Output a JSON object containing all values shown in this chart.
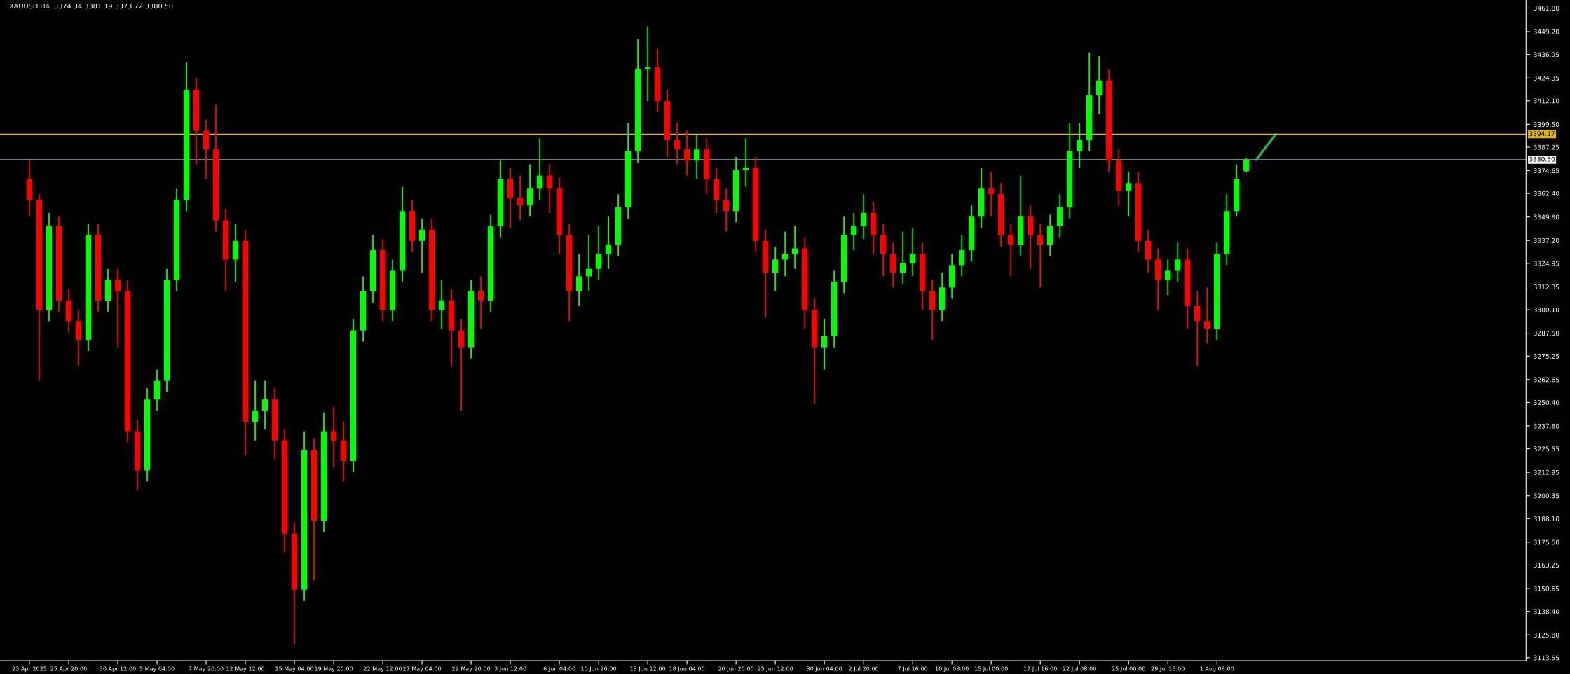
{
  "chart_data": {
    "type": "candlestick",
    "title": "XAUUSD,H4  3374.34 3381.19 3373.72 3380.50",
    "categories": [
      "23 Apr 2025",
      null,
      null,
      null,
      "25 Apr 20:00",
      null,
      null,
      null,
      null,
      "30 Apr 12:00",
      null,
      null,
      null,
      "5 May 04:00",
      null,
      null,
      null,
      null,
      "7 May 20:00",
      null,
      null,
      null,
      "12 May 12:00",
      null,
      null,
      null,
      null,
      "15 May 04:00",
      null,
      null,
      null,
      "19 May 20:00",
      null,
      null,
      null,
      null,
      "22 May 12:00",
      null,
      null,
      null,
      "27 May 04:00",
      null,
      null,
      null,
      null,
      "29 May 20:00",
      null,
      null,
      null,
      "3 Jun 12:00",
      null,
      null,
      null,
      null,
      "6 Jun 04:00",
      null,
      null,
      null,
      "10 Jun 20:00",
      null,
      null,
      null,
      null,
      "13 Jun 12:00",
      null,
      null,
      null,
      "18 Jun 04:00",
      null,
      null,
      null,
      null,
      "20 Jun 20:00",
      null,
      null,
      null,
      "25 Jun 12:00",
      null,
      null,
      null,
      null,
      "30 Jun 04:00",
      null,
      null,
      null,
      "2 Jul 20:00",
      null,
      null,
      null,
      null,
      "7 Jul 16:00",
      null,
      null,
      null,
      "10 Jul 08:00",
      null,
      null,
      null,
      "15 Jul 00:00",
      null,
      null,
      null,
      null,
      "17 Jul 16:00",
      null,
      null,
      null,
      "22 Jul 08:00",
      null,
      null,
      null,
      null,
      "25 Jul 00:00",
      null,
      null,
      null,
      "29 Jul 16:00",
      null,
      null,
      null,
      null,
      "1 Aug 08:00",
      null,
      null,
      null,
      null,
      null,
      null,
      null,
      null,
      null,
      null,
      null,
      null,
      null,
      null,
      null,
      null,
      null,
      null,
      null,
      null,
      null,
      null,
      null,
      null,
      null,
      null,
      null,
      null,
      null,
      null,
      null
    ],
    "ohlc": [
      [
        3370,
        3380,
        3350,
        3359
      ],
      [
        3359,
        3362,
        3262,
        3300
      ],
      [
        3300,
        3352,
        3294,
        3345
      ],
      [
        3345,
        3350,
        3299,
        3305
      ],
      [
        3305,
        3311,
        3288,
        3294
      ],
      [
        3294,
        3300,
        3270,
        3284
      ],
      [
        3284,
        3346,
        3278,
        3340
      ],
      [
        3340,
        3346,
        3299,
        3305
      ],
      [
        3305,
        3322,
        3299,
        3316
      ],
      [
        3316,
        3322,
        3280,
        3310
      ],
      [
        3310,
        3316,
        3229,
        3235
      ],
      [
        3235,
        3241,
        3203,
        3214
      ],
      [
        3214,
        3258,
        3208,
        3252
      ],
      [
        3252,
        3268,
        3246,
        3262
      ],
      [
        3262,
        3322,
        3256,
        3316
      ],
      [
        3316,
        3365,
        3310,
        3359
      ],
      [
        3359,
        3433,
        3353,
        3418
      ],
      [
        3418,
        3424,
        3378,
        3396
      ],
      [
        3396,
        3402,
        3370,
        3386
      ],
      [
        3386,
        3410,
        3342,
        3348
      ],
      [
        3348,
        3354,
        3310,
        3327
      ],
      [
        3327,
        3346,
        3315,
        3337
      ],
      [
        3337,
        3343,
        3222,
        3240
      ],
      [
        3240,
        3262,
        3230,
        3246
      ],
      [
        3246,
        3262,
        3236,
        3252
      ],
      [
        3252,
        3258,
        3220,
        3230
      ],
      [
        3230,
        3236,
        3170,
        3180
      ],
      [
        3180,
        3186,
        3121,
        3150
      ],
      [
        3150,
        3235,
        3144,
        3225
      ],
      [
        3225,
        3231,
        3155,
        3187
      ],
      [
        3187,
        3245,
        3181,
        3235
      ],
      [
        3235,
        3248,
        3216,
        3230
      ],
      [
        3230,
        3240,
        3208,
        3219
      ],
      [
        3219,
        3295,
        3213,
        3289
      ],
      [
        3289,
        3318,
        3283,
        3310
      ],
      [
        3310,
        3340,
        3304,
        3332
      ],
      [
        3332,
        3338,
        3294,
        3300
      ],
      [
        3300,
        3327,
        3294,
        3321
      ],
      [
        3321,
        3366,
        3315,
        3353
      ],
      [
        3353,
        3359,
        3331,
        3337
      ],
      [
        3337,
        3349,
        3320,
        3343
      ],
      [
        3343,
        3349,
        3294,
        3300
      ],
      [
        3300,
        3316,
        3290,
        3305
      ],
      [
        3305,
        3311,
        3270,
        3289
      ],
      [
        3289,
        3295,
        3246,
        3280
      ],
      [
        3280,
        3316,
        3274,
        3310
      ],
      [
        3310,
        3318,
        3290,
        3305
      ],
      [
        3305,
        3351,
        3299,
        3345
      ],
      [
        3345,
        3380,
        3339,
        3370
      ],
      [
        3370,
        3376,
        3344,
        3360
      ],
      [
        3360,
        3372,
        3348,
        3356
      ],
      [
        3356,
        3378,
        3350,
        3365
      ],
      [
        3365,
        3392,
        3359,
        3372
      ],
      [
        3372,
        3378,
        3352,
        3365
      ],
      [
        3365,
        3371,
        3330,
        3340
      ],
      [
        3340,
        3346,
        3294,
        3310
      ],
      [
        3310,
        3330,
        3302,
        3318
      ],
      [
        3318,
        3340,
        3310,
        3322
      ],
      [
        3322,
        3345,
        3316,
        3330
      ],
      [
        3330,
        3350,
        3322,
        3335
      ],
      [
        3335,
        3362,
        3329,
        3355
      ],
      [
        3355,
        3400,
        3349,
        3385
      ],
      [
        3385,
        3445,
        3379,
        3429
      ],
      [
        3429,
        3452,
        3412,
        3430
      ],
      [
        3430,
        3440,
        3406,
        3412
      ],
      [
        3412,
        3418,
        3382,
        3391
      ],
      [
        3391,
        3400,
        3378,
        3386
      ],
      [
        3386,
        3396,
        3372,
        3380
      ],
      [
        3380,
        3394,
        3370,
        3386
      ],
      [
        3386,
        3392,
        3362,
        3370
      ],
      [
        3370,
        3376,
        3352,
        3359
      ],
      [
        3359,
        3365,
        3342,
        3353
      ],
      [
        3353,
        3382,
        3347,
        3375
      ],
      [
        3375,
        3392,
        3366,
        3376
      ],
      [
        3376,
        3382,
        3331,
        3337
      ],
      [
        3337,
        3343,
        3296,
        3320
      ],
      [
        3320,
        3334,
        3310,
        3327
      ],
      [
        3327,
        3342,
        3318,
        3330
      ],
      [
        3330,
        3345,
        3322,
        3333
      ],
      [
        3333,
        3339,
        3290,
        3300
      ],
      [
        3300,
        3306,
        3250,
        3280
      ],
      [
        3280,
        3295,
        3268,
        3286
      ],
      [
        3286,
        3321,
        3280,
        3315
      ],
      [
        3315,
        3350,
        3309,
        3340
      ],
      [
        3340,
        3352,
        3332,
        3345
      ],
      [
        3345,
        3362,
        3338,
        3352
      ],
      [
        3352,
        3358,
        3330,
        3340
      ],
      [
        3340,
        3346,
        3318,
        3330
      ],
      [
        3330,
        3336,
        3312,
        3320
      ],
      [
        3320,
        3342,
        3314,
        3325
      ],
      [
        3325,
        3344,
        3318,
        3330
      ],
      [
        3330,
        3336,
        3300,
        3310
      ],
      [
        3310,
        3316,
        3284,
        3300
      ],
      [
        3300,
        3320,
        3294,
        3312
      ],
      [
        3312,
        3330,
        3306,
        3324
      ],
      [
        3324,
        3340,
        3318,
        3332
      ],
      [
        3332,
        3356,
        3326,
        3350
      ],
      [
        3350,
        3376,
        3344,
        3365
      ],
      [
        3365,
        3374,
        3350,
        3362
      ],
      [
        3362,
        3368,
        3334,
        3340
      ],
      [
        3340,
        3346,
        3318,
        3335
      ],
      [
        3335,
        3372,
        3329,
        3350
      ],
      [
        3350,
        3356,
        3322,
        3340
      ],
      [
        3340,
        3346,
        3312,
        3335
      ],
      [
        3335,
        3351,
        3329,
        3345
      ],
      [
        3345,
        3362,
        3339,
        3355
      ],
      [
        3355,
        3400,
        3349,
        3385
      ],
      [
        3385,
        3400,
        3376,
        3391
      ],
      [
        3391,
        3438,
        3385,
        3415
      ],
      [
        3415,
        3436,
        3405,
        3423
      ],
      [
        3423,
        3429,
        3374,
        3380
      ],
      [
        3380,
        3386,
        3356,
        3364
      ],
      [
        3364,
        3374,
        3350,
        3368
      ],
      [
        3368,
        3374,
        3331,
        3337
      ],
      [
        3337,
        3343,
        3320,
        3327
      ],
      [
        3327,
        3333,
        3300,
        3316
      ],
      [
        3316,
        3327,
        3308,
        3321
      ],
      [
        3321,
        3336,
        3315,
        3327
      ],
      [
        3327,
        3333,
        3290,
        3302
      ],
      [
        3302,
        3310,
        3270,
        3294
      ],
      [
        3294,
        3312,
        3282,
        3290
      ],
      [
        3290,
        3336,
        3284,
        3330
      ],
      [
        3330,
        3362,
        3324,
        3353
      ],
      [
        3353,
        3378,
        3350,
        3370
      ],
      [
        3374.34,
        3381.19,
        3373.72,
        3380.5
      ],
      null,
      null,
      null,
      null,
      null,
      null,
      null,
      null,
      null,
      null,
      null,
      null,
      null,
      null,
      null,
      null,
      null,
      null,
      null,
      null,
      null,
      null,
      null,
      null,
      null,
      null,
      null,
      null
    ],
    "colors": [
      "#ff0000",
      "#ff0000",
      "#00ff00",
      "#ff0000",
      "#ff0000",
      "#ff0000",
      "#00ff00",
      "#ff0000",
      "#00ff00",
      "#ff0000",
      "#ff0000",
      "#ff0000",
      "#00ff00",
      "#00ff00",
      "#00ff00",
      "#00ff00",
      "#00ff00",
      "#ff0000",
      "#ff0000",
      "#ff0000",
      "#ff0000",
      "#00ff00",
      "#ff0000",
      "#00ff00",
      "#00ff00",
      "#ff0000",
      "#ff0000",
      "#ff0000",
      "#00ff00",
      "#ff0000",
      "#00ff00",
      "#ff0000",
      "#ff0000",
      "#00ff00",
      "#00ff00",
      "#00ff00",
      "#ff0000",
      "#00ff00",
      "#00ff00",
      "#ff0000",
      "#00ff00",
      "#ff0000",
      "#00ff00",
      "#ff0000",
      "#ff0000",
      "#00ff00",
      "#ff0000",
      "#00ff00",
      "#00ff00",
      "#ff0000",
      "#ff0000",
      "#00ff00",
      "#00ff00",
      "#ff0000",
      "#ff0000",
      "#ff0000",
      "#00ff00",
      "#00ff00",
      "#00ff00",
      "#00ff00",
      "#00ff00",
      "#00ff00",
      "#00ff00",
      "#00ff00",
      "#ff0000",
      "#ff0000",
      "#ff0000",
      "#ff0000",
      "#00ff00",
      "#ff0000",
      "#ff0000",
      "#ff0000",
      "#00ff00",
      "#00ff00",
      "#ff0000",
      "#ff0000",
      "#00ff00",
      "#00ff00",
      "#00ff00",
      "#ff0000",
      "#ff0000",
      "#00ff00",
      "#00ff00",
      "#00ff00",
      "#00ff00",
      "#00ff00",
      "#ff0000",
      "#ff0000",
      "#ff0000",
      "#00ff00",
      "#00ff00",
      "#ff0000",
      "#ff0000",
      "#00ff00",
      "#00ff00",
      "#00ff00",
      "#00ff00",
      "#00ff00",
      "#ff0000",
      "#ff0000",
      "#ff0000",
      "#00ff00",
      "#ff0000",
      "#ff0000",
      "#00ff00",
      "#00ff00",
      "#00ff00",
      "#00ff00",
      "#00ff00",
      "#00ff00",
      "#ff0000",
      "#ff0000",
      "#00ff00",
      "#ff0000",
      "#ff0000",
      "#ff0000",
      "#00ff00",
      "#00ff00",
      "#ff0000",
      "#ff0000",
      "#ff0000",
      "#00ff00",
      "#00ff00",
      "#00ff00",
      "#00ff00",
      null,
      null,
      null,
      null,
      null,
      null,
      null,
      null,
      null,
      null,
      null,
      null,
      null,
      null,
      null,
      null,
      null,
      null,
      null,
      null,
      null,
      null,
      null,
      null,
      null,
      null,
      null,
      null
    ],
    "series": [
      {
        "type": "line",
        "color": "#22b14c",
        "values": [
          null,
          null,
          null,
          null,
          null,
          null,
          null,
          null,
          null,
          null,
          null,
          null,
          null,
          null,
          null,
          null,
          null,
          null,
          null,
          null,
          null,
          null,
          null,
          null,
          null,
          null,
          null,
          null,
          null,
          null,
          null,
          null,
          null,
          null,
          null,
          null,
          null,
          null,
          null,
          null,
          null,
          null,
          null,
          null,
          null,
          null,
          null,
          null,
          null,
          null,
          null,
          null,
          null,
          null,
          null,
          null,
          null,
          null,
          null,
          null,
          null,
          null,
          null,
          null,
          null,
          null,
          null,
          null,
          null,
          null,
          null,
          null,
          null,
          null,
          null,
          null,
          null,
          null,
          null,
          null,
          null,
          null,
          null,
          null,
          null,
          null,
          null,
          null,
          null,
          null,
          null,
          null,
          null,
          null,
          null,
          null,
          null,
          null,
          null,
          null,
          null,
          null,
          null,
          null,
          null,
          null,
          null,
          null,
          null,
          null,
          null,
          null,
          null,
          null,
          null,
          null,
          null,
          null,
          null,
          null,
          null,
          null,
          null,
          null,
          null,
          3380.5,
          null,
          3394.17,
          null,
          null,
          null,
          null,
          null,
          null,
          null,
          null,
          null,
          null,
          null,
          null,
          null,
          null,
          null,
          null,
          null,
          null,
          null,
          null,
          null,
          null,
          null,
          null,
          null
        ]
      }
    ],
    "ylim": [
      3112,
      3466.1
    ],
    "yticks": [
      3113.55,
      {
        "value": 3125.8,
        "label": "3125.80"
      },
      {
        "value": 3138.4,
        "label": "3138.40"
      },
      3150.65,
      3163.25,
      {
        "value": 3175.5,
        "label": "3175.50"
      },
      {
        "value": 3188.1,
        "label": "3188.10"
      },
      3200.35,
      3212.95,
      3225.55,
      {
        "value": 3237.8,
        "label": "3237.80"
      },
      {
        "value": 3250.4,
        "label": "3250.40"
      },
      3262.65,
      3275.25,
      {
        "value": 3287.5,
        "label": "3287.50"
      },
      {
        "value": 3300.1,
        "label": "3300.10"
      },
      3312.35,
      3324.95,
      {
        "value": 3337.2,
        "label": "3337.20"
      },
      {
        "value": 3349.8,
        "label": "3349.80"
      },
      {
        "value": 3362.4,
        "label": "3362.40"
      },
      3374.65,
      3387.25,
      {
        "value": 3399.5,
        "label": "3399.50"
      },
      {
        "value": 3412.1,
        "label": "3412.10"
      },
      3424.35,
      3436.95,
      {
        "value": 3449.2,
        "label": "3449.20"
      },
      {
        "value": 3461.8,
        "label": "3461.80"
      }
    ],
    "ref_lines": [
      {
        "axis": "y",
        "value": 3394.17,
        "label": "3394.17",
        "color": "#e6b800"
      },
      {
        "axis": "y",
        "value": 3380.5,
        "label": "3380.50",
        "color": "#708090"
      }
    ],
    "grid": false,
    "legend": false
  }
}
